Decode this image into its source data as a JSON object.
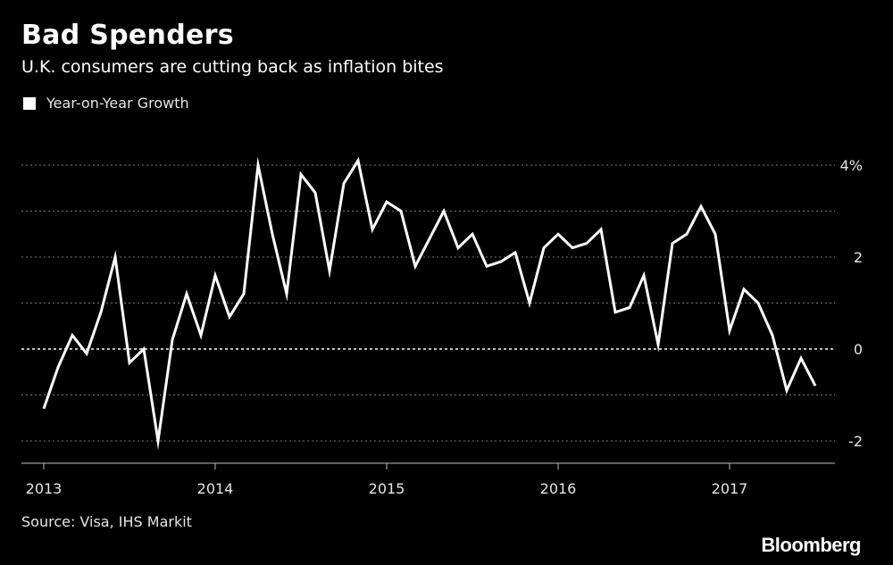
{
  "title": "Bad Spenders",
  "subtitle": "U.K. consumers are cutting back as inflation bites",
  "source": "Source: Visa, IHS Markit",
  "brand": "Bloomberg",
  "colors": {
    "background": "#000000",
    "line": "#ffffff",
    "grid": "#777777",
    "text": "#e6e6e6"
  },
  "chart_data": {
    "type": "line",
    "title": "Bad Spenders",
    "subtitle": "U.K. consumers are cutting back as inflation bites",
    "ylabel": "",
    "xlabel": "",
    "ylim": [
      -2.5,
      4.2
    ],
    "y_ticks": [
      {
        "value": 4,
        "label": "4%"
      },
      {
        "value": 2,
        "label": "2"
      },
      {
        "value": 0,
        "label": "0"
      },
      {
        "value": -2,
        "label": "-2"
      }
    ],
    "y_gridlines": [
      4,
      3,
      2,
      1,
      0,
      -1,
      -2
    ],
    "zero_line": 0,
    "x_ticks": [
      "2013",
      "2014",
      "2015",
      "2016",
      "2017"
    ],
    "grid": true,
    "legend_position": "top-left",
    "series": [
      {
        "name": "Year-on-Year Growth",
        "color": "#ffffff",
        "x": [
          "2013-01",
          "2013-02",
          "2013-03",
          "2013-04",
          "2013-05",
          "2013-06",
          "2013-07",
          "2013-08",
          "2013-09",
          "2013-10",
          "2013-11",
          "2013-12",
          "2014-01",
          "2014-02",
          "2014-03",
          "2014-04",
          "2014-05",
          "2014-06",
          "2014-07",
          "2014-08",
          "2014-09",
          "2014-10",
          "2014-11",
          "2014-12",
          "2015-01",
          "2015-02",
          "2015-03",
          "2015-04",
          "2015-05",
          "2015-06",
          "2015-07",
          "2015-08",
          "2015-09",
          "2015-10",
          "2015-11",
          "2015-12",
          "2016-01",
          "2016-02",
          "2016-03",
          "2016-04",
          "2016-05",
          "2016-06",
          "2016-07",
          "2016-08",
          "2016-09",
          "2016-10",
          "2016-11",
          "2016-12",
          "2017-01",
          "2017-02",
          "2017-03",
          "2017-04",
          "2017-05",
          "2017-06",
          "2017-07"
        ],
        "values": [
          -1.3,
          -0.4,
          0.3,
          -0.1,
          0.8,
          2.0,
          -0.3,
          0.0,
          -2.0,
          0.2,
          1.2,
          0.3,
          1.6,
          0.7,
          1.2,
          4.0,
          2.5,
          1.2,
          3.8,
          3.4,
          1.7,
          3.6,
          4.1,
          2.6,
          3.2,
          3.0,
          1.8,
          2.4,
          3.0,
          2.2,
          2.5,
          1.8,
          1.9,
          2.1,
          1.0,
          2.2,
          2.5,
          2.2,
          2.3,
          2.6,
          0.8,
          0.9,
          1.6,
          0.1,
          2.3,
          2.5,
          3.1,
          2.5,
          0.4,
          1.3,
          1.0,
          0.3,
          -0.9,
          -0.2,
          -0.8
        ]
      }
    ]
  }
}
